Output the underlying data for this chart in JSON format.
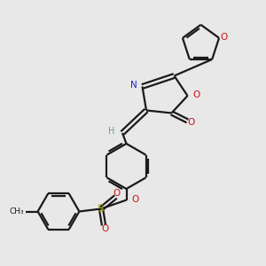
{
  "bg_color": "#e8e8e8",
  "bond_color": "#1a1a1a",
  "N_color": "#2222cc",
  "O_color": "#cc1111",
  "S_color": "#aaaa00",
  "H_color": "#669999",
  "line_width": 1.6,
  "figsize": [
    3.0,
    3.0
  ],
  "dpi": 100,
  "xlim": [
    0,
    10
  ],
  "ylim": [
    0,
    10
  ]
}
